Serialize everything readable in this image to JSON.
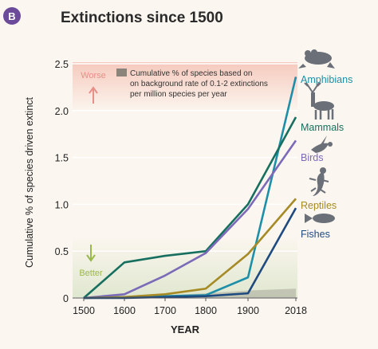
{
  "panel": {
    "badge": "B",
    "title": "Extinctions since 1500"
  },
  "chart_data": {
    "type": "line",
    "title": "Extinctions since 1500",
    "xlabel": "YEAR",
    "ylabel": "Cumulative % of species driven extinct",
    "x": [
      1500,
      1600,
      1700,
      1800,
      1900,
      2018
    ],
    "x_ticks": [
      "1500",
      "1600",
      "1700",
      "1800",
      "1900",
      "2018"
    ],
    "y_ticks": [
      "0",
      "0.5",
      "1.0",
      "1.5",
      "2.0",
      "2.5"
    ],
    "ylim": [
      0,
      2.5
    ],
    "grid": false,
    "series": [
      {
        "name": "Amphibians",
        "color": "#1d8fa8",
        "icon": "frog-icon",
        "values": [
          0,
          0.01,
          0.02,
          0.03,
          0.22,
          2.36
        ]
      },
      {
        "name": "Mammals",
        "color": "#17705f",
        "icon": "deer-icon",
        "values": [
          0,
          0.38,
          0.45,
          0.5,
          1.0,
          1.93
        ]
      },
      {
        "name": "Birds",
        "color": "#7a6ab8",
        "icon": "bird-icon",
        "values": [
          0,
          0.04,
          0.24,
          0.48,
          0.95,
          1.68
        ]
      },
      {
        "name": "Reptiles",
        "color": "#a68a25",
        "icon": "lizard-icon",
        "values": [
          0,
          0.01,
          0.04,
          0.1,
          0.47,
          1.06
        ]
      },
      {
        "name": "Fishes",
        "color": "#1f4a80",
        "icon": "fish-icon",
        "values": [
          0,
          0.0,
          0.01,
          0.02,
          0.05,
          0.96
        ]
      }
    ],
    "background_rate": {
      "label": "Cumulative % of species based on on background rate of 0.1-2 extinctions per million species per year",
      "values": [
        0,
        0.01,
        0.03,
        0.05,
        0.08,
        0.1
      ],
      "color": "#8a847b"
    },
    "annotations": {
      "worse": "Worse",
      "better": "Better"
    }
  }
}
